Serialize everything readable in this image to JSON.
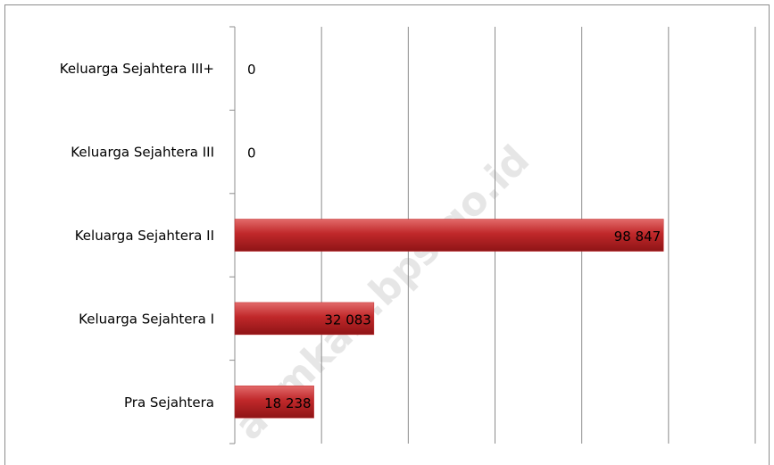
{
  "chart_data": {
    "type": "bar",
    "orientation": "horizontal",
    "categories": [
      "Keluarga Sejahtera III+",
      "Keluarga Sejahtera III",
      "Keluarga Sejahtera II",
      "Keluarga Sejahtera I",
      "Pra Sejahtera"
    ],
    "values": [
      0,
      0,
      98847,
      32083,
      18238
    ],
    "value_labels": [
      "0",
      "0",
      "98 847",
      "32 083",
      "18 238"
    ],
    "color": "#c0282a",
    "xlim": [
      0,
      120000
    ],
    "xticks": [
      0,
      20000,
      40000,
      60000,
      80000,
      100000,
      120000
    ],
    "grid": true,
    "watermark": "aemkab.bps.go.id"
  }
}
